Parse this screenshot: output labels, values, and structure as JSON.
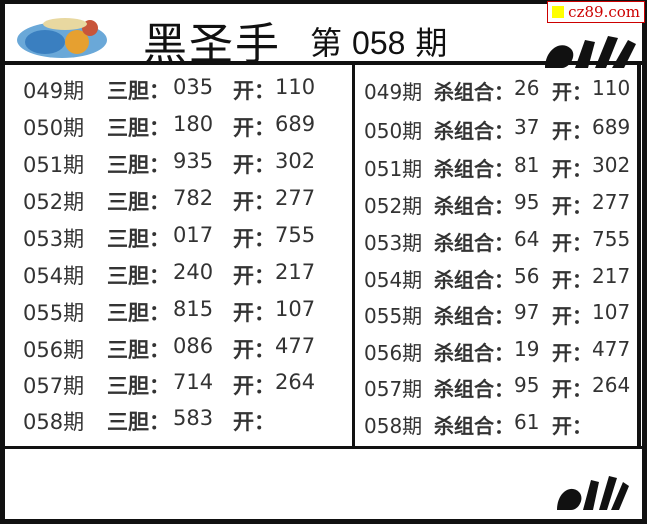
{
  "header": {
    "title": "黑圣手",
    "issue_prefix": "第",
    "issue_number": "058",
    "issue_suffix": "期",
    "watermark": "cz89.com"
  },
  "left_table": {
    "label": "三胆：",
    "open_label": "开：",
    "rows": [
      {
        "period": "049期",
        "value": "035",
        "open": "110"
      },
      {
        "period": "050期",
        "value": "180",
        "open": "689"
      },
      {
        "period": "051期",
        "value": "935",
        "open": "302"
      },
      {
        "period": "052期",
        "value": "782",
        "open": "277"
      },
      {
        "period": "053期",
        "value": "017",
        "open": "755"
      },
      {
        "period": "054期",
        "value": "240",
        "open": "217"
      },
      {
        "period": "055期",
        "value": "815",
        "open": "107"
      },
      {
        "period": "056期",
        "value": "086",
        "open": "477"
      },
      {
        "period": "057期",
        "value": "714",
        "open": "264"
      },
      {
        "period": "058期",
        "value": "583",
        "open": ""
      }
    ]
  },
  "right_table": {
    "label": "杀组合：",
    "open_label": "开：",
    "rows": [
      {
        "period": "049期",
        "value": "26",
        "open": "110"
      },
      {
        "period": "050期",
        "value": "37",
        "open": "689"
      },
      {
        "period": "051期",
        "value": "81",
        "open": "302"
      },
      {
        "period": "052期",
        "value": "95",
        "open": "277"
      },
      {
        "period": "053期",
        "value": "64",
        "open": "755"
      },
      {
        "period": "054期",
        "value": "56",
        "open": "217"
      },
      {
        "period": "055期",
        "value": "97",
        "open": "107"
      },
      {
        "period": "056期",
        "value": "19",
        "open": "477"
      },
      {
        "period": "057期",
        "value": "95",
        "open": "264"
      },
      {
        "period": "058期",
        "value": "61",
        "open": ""
      }
    ]
  }
}
